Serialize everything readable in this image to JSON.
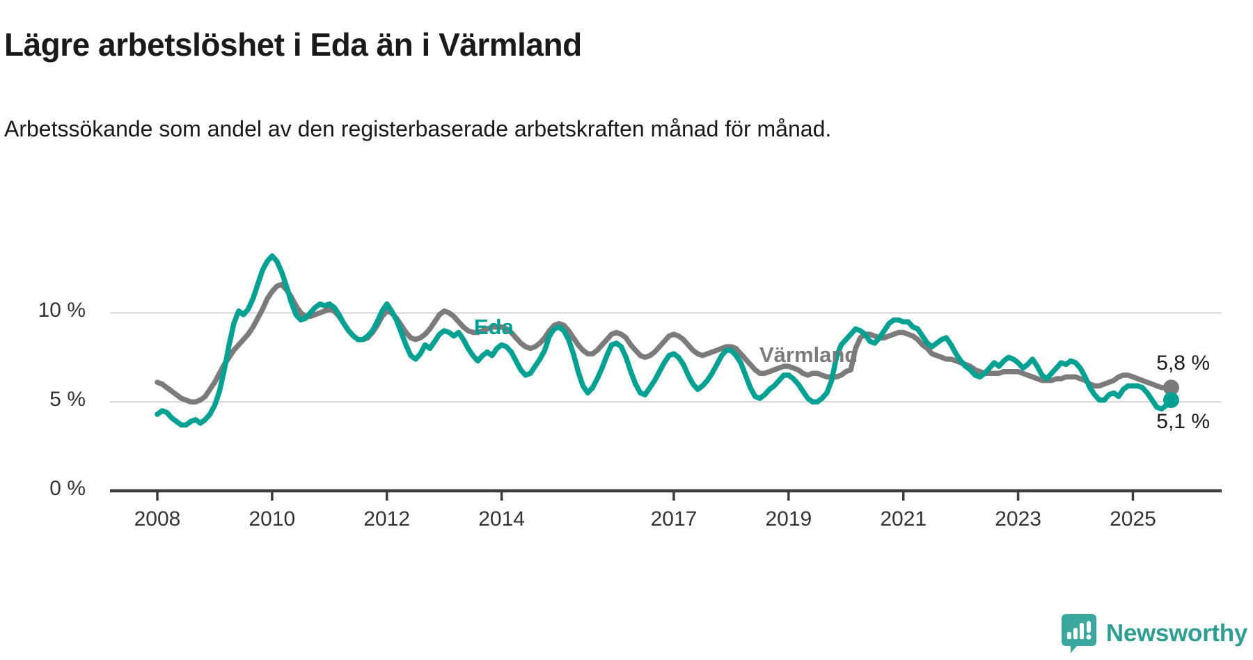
{
  "title": "Lägre arbetslöshet i Eda än i Värmland",
  "subtitle": "Arbetssökande som andel av den registerbaserade arbetskraften månad för månad.",
  "logo": {
    "text": "Newsworthy"
  },
  "colors": {
    "eda_line": "#00a092",
    "varmland_line": "#7b7b7b",
    "gridline": "#dcdcdc",
    "axis": "#3c3c3c",
    "tick_text": "#333333",
    "logo_teal": "#3aa89d"
  },
  "chart_data": {
    "type": "line",
    "title": "Lägre arbetslöshet i Eda än i Värmland",
    "subtitle": "Arbetssökande som andel av den registerbaserade arbetskraften månad för månad.",
    "frequency": "monthly",
    "x_start": "2008-01",
    "x_end": "2025-09",
    "ylim": [
      0,
      14
    ],
    "grid": "horizontal",
    "y_ticks": [
      {
        "label": "0 %",
        "value": 0
      },
      {
        "label": "5 %",
        "value": 5
      },
      {
        "label": "10 %",
        "value": 10
      }
    ],
    "x_ticks": [
      {
        "label": "2008",
        "year": 2008
      },
      {
        "label": "2010",
        "year": 2010
      },
      {
        "label": "2012",
        "year": 2012
      },
      {
        "label": "2014",
        "year": 2014
      },
      {
        "label": "2017",
        "year": 2017
      },
      {
        "label": "2019",
        "year": 2019
      },
      {
        "label": "2021",
        "year": 2021
      },
      {
        "label": "2023",
        "year": 2023
      },
      {
        "label": "2025",
        "year": 2025
      }
    ],
    "series": [
      {
        "name": "Värmland",
        "color": "#7b7b7b",
        "end_label": "5,8 %",
        "end_value": 5.8,
        "values": [
          6.1,
          6.0,
          5.8,
          5.6,
          5.4,
          5.2,
          5.1,
          5.0,
          5.0,
          5.1,
          5.3,
          5.7,
          6.1,
          6.6,
          7.1,
          7.5,
          7.9,
          8.2,
          8.5,
          8.8,
          9.2,
          9.7,
          10.2,
          10.8,
          11.2,
          11.5,
          11.6,
          11.3,
          10.9,
          10.4,
          10.0,
          9.8,
          9.8,
          9.9,
          10.0,
          10.1,
          10.2,
          10.1,
          9.8,
          9.4,
          9.0,
          8.7,
          8.5,
          8.5,
          8.6,
          8.9,
          9.3,
          9.8,
          10.1,
          10.0,
          9.7,
          9.3,
          8.9,
          8.6,
          8.5,
          8.6,
          8.8,
          9.1,
          9.5,
          9.9,
          10.1,
          10.0,
          9.8,
          9.5,
          9.2,
          9.0,
          8.9,
          8.9,
          9.0,
          9.1,
          9.2,
          9.2,
          9.2,
          9.1,
          8.9,
          8.6,
          8.3,
          8.1,
          8.0,
          8.1,
          8.3,
          8.6,
          9.0,
          9.3,
          9.4,
          9.3,
          9.0,
          8.6,
          8.2,
          7.9,
          7.7,
          7.7,
          7.9,
          8.2,
          8.5,
          8.8,
          8.9,
          8.8,
          8.6,
          8.2,
          7.9,
          7.6,
          7.5,
          7.6,
          7.8,
          8.1,
          8.4,
          8.7,
          8.8,
          8.7,
          8.5,
          8.2,
          7.9,
          7.7,
          7.6,
          7.7,
          7.8,
          7.9,
          8.0,
          8.1,
          8.1,
          8.0,
          7.7,
          7.4,
          7.1,
          6.8,
          6.6,
          6.6,
          6.7,
          6.8,
          6.9,
          7.0,
          7.0,
          6.9,
          6.8,
          6.6,
          6.5,
          6.6,
          6.6,
          6.5,
          6.4,
          6.4,
          6.4,
          6.5,
          6.7,
          6.8,
          8.0,
          8.6,
          8.8,
          8.8,
          8.7,
          8.6,
          8.6,
          8.7,
          8.8,
          8.9,
          8.9,
          8.8,
          8.7,
          8.5,
          8.2,
          8.0,
          7.7,
          7.6,
          7.5,
          7.4,
          7.4,
          7.3,
          7.2,
          7.1,
          7.0,
          6.8,
          6.7,
          6.6,
          6.6,
          6.6,
          6.6,
          6.7,
          6.7,
          6.7,
          6.7,
          6.6,
          6.5,
          6.4,
          6.3,
          6.2,
          6.2,
          6.2,
          6.3,
          6.3,
          6.4,
          6.4,
          6.4,
          6.3,
          6.2,
          6.0,
          5.9,
          5.9,
          6.0,
          6.1,
          6.2,
          6.4,
          6.5,
          6.5,
          6.4,
          6.3,
          6.2,
          6.1,
          6.0,
          5.9,
          5.8,
          5.8,
          5.8
        ]
      },
      {
        "name": "Eda",
        "color": "#00a092",
        "end_label": "5,1 %",
        "end_value": 5.1,
        "values": [
          4.3,
          4.5,
          4.4,
          4.1,
          3.9,
          3.7,
          3.7,
          3.9,
          4.0,
          3.8,
          4.0,
          4.3,
          4.8,
          5.6,
          6.8,
          8.2,
          9.4,
          10.1,
          9.9,
          10.2,
          10.8,
          11.6,
          12.4,
          12.9,
          13.2,
          12.9,
          12.3,
          11.5,
          10.6,
          9.9,
          9.6,
          9.7,
          10.0,
          10.3,
          10.5,
          10.4,
          10.5,
          10.3,
          9.9,
          9.4,
          9.0,
          8.7,
          8.5,
          8.5,
          8.7,
          9.0,
          9.5,
          10.1,
          10.5,
          10.1,
          9.6,
          8.9,
          8.2,
          7.6,
          7.4,
          7.7,
          8.2,
          8.0,
          8.4,
          8.8,
          9.0,
          8.9,
          8.7,
          8.9,
          8.5,
          8.0,
          7.6,
          7.3,
          7.6,
          7.8,
          7.6,
          8.0,
          8.2,
          8.1,
          7.8,
          7.3,
          6.8,
          6.5,
          6.6,
          7.0,
          7.4,
          7.9,
          8.7,
          9.1,
          9.2,
          9.0,
          8.5,
          7.7,
          6.7,
          5.9,
          5.5,
          5.8,
          6.3,
          6.9,
          7.6,
          8.2,
          8.3,
          8.1,
          7.5,
          6.7,
          6.0,
          5.5,
          5.4,
          5.8,
          6.2,
          6.7,
          7.2,
          7.6,
          7.7,
          7.5,
          7.1,
          6.5,
          6.0,
          5.7,
          5.9,
          6.2,
          6.6,
          7.1,
          7.6,
          7.9,
          7.9,
          7.6,
          7.2,
          6.5,
          5.8,
          5.3,
          5.2,
          5.4,
          5.7,
          5.9,
          6.2,
          6.5,
          6.5,
          6.3,
          6.0,
          5.6,
          5.2,
          5.0,
          5.0,
          5.2,
          5.5,
          6.2,
          7.5,
          8.2,
          8.5,
          8.8,
          9.1,
          9.0,
          8.8,
          8.4,
          8.3,
          8.6,
          9.0,
          9.4,
          9.6,
          9.6,
          9.5,
          9.5,
          9.2,
          9.1,
          8.7,
          8.3,
          8.1,
          8.3,
          8.5,
          8.6,
          8.2,
          7.7,
          7.3,
          7.0,
          6.8,
          6.5,
          6.4,
          6.6,
          6.9,
          7.2,
          7.0,
          7.3,
          7.5,
          7.4,
          7.2,
          6.9,
          7.1,
          7.4,
          7.0,
          6.5,
          6.3,
          6.6,
          6.9,
          7.2,
          7.1,
          7.3,
          7.2,
          6.9,
          6.4,
          5.8,
          5.4,
          5.1,
          5.1,
          5.4,
          5.5,
          5.3,
          5.7,
          5.9,
          5.9,
          5.9,
          5.8,
          5.5,
          5.1,
          4.7,
          4.6,
          4.8,
          5.1
        ]
      }
    ],
    "series_labels": [
      {
        "text": "Eda",
        "series": "Eda"
      },
      {
        "text": "Värmland",
        "series": "Värmland"
      }
    ]
  }
}
